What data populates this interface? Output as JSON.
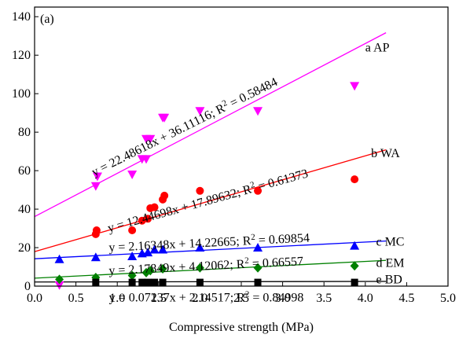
{
  "chart_data": {
    "type": "scatter",
    "panel_label": "(a)",
    "xlabel": "Compressive strength (MPa)",
    "ylabel": "",
    "xlim": [
      0.0,
      5.0
    ],
    "ylim": [
      0,
      145
    ],
    "x_ticks": [
      0.0,
      0.5,
      1.0,
      1.5,
      2.0,
      2.5,
      3.0,
      3.5,
      4.0,
      4.5,
      5.0
    ],
    "x_tick_labels": [
      "0.0",
      "0.5",
      "1.0",
      "1.5",
      "2.0",
      "2.5",
      "3.0",
      "3.5",
      "4.0",
      "4.5",
      "5.0"
    ],
    "y_ticks": [
      0,
      20,
      40,
      60,
      80,
      100,
      120,
      140
    ],
    "y_tick_labels": [
      "0",
      "20",
      "40",
      "60",
      "80",
      "100",
      "120",
      "140"
    ],
    "grid": false,
    "series": [
      {
        "key": "ap",
        "label": "a AP",
        "marker": "triangle-down",
        "color": "#ff00ff",
        "equation": "y = 22.48618x + 36.11116; R",
        "r2_value": " = 0.58484",
        "slope": 22.48618,
        "intercept": 36.11116,
        "fit_range": [
          0.0,
          4.25
        ],
        "label_at": [
          4.0,
          122.0
        ],
        "points": [
          [
            0.3,
            0.5
          ],
          [
            0.74,
            52
          ],
          [
            0.76,
            57
          ],
          [
            1.18,
            58
          ],
          [
            1.3,
            66
          ],
          [
            1.35,
            66
          ],
          [
            1.35,
            76.5
          ],
          [
            1.4,
            76.5
          ],
          [
            1.55,
            87.5
          ],
          [
            1.57,
            87.5
          ],
          [
            2.0,
            91
          ],
          [
            2.7,
            91
          ],
          [
            3.87,
            104
          ]
        ]
      },
      {
        "key": "wa",
        "label": "b WA",
        "marker": "circle",
        "color": "#ff0000",
        "equation": "y = 12.44698x + 17.89632; R",
        "r2_value": " = 0.61373",
        "slope": 12.44698,
        "intercept": 17.89632,
        "fit_range": [
          0.0,
          4.25
        ],
        "label_at": [
          4.07,
          67.0
        ],
        "points": [
          [
            0.74,
            27
          ],
          [
            0.75,
            29
          ],
          [
            1.18,
            29
          ],
          [
            1.3,
            34
          ],
          [
            1.37,
            35
          ],
          [
            1.4,
            40.5
          ],
          [
            1.45,
            41
          ],
          [
            1.55,
            45
          ],
          [
            1.57,
            47
          ],
          [
            2.0,
            49.5
          ],
          [
            2.7,
            49.5
          ],
          [
            3.87,
            55.5
          ]
        ]
      },
      {
        "key": "mc",
        "label": "c MC",
        "marker": "triangle-up",
        "color": "#0000ff",
        "equation": "y = 2.16348x + 14.22665; R",
        "r2_value": " = 0.69854",
        "slope": 2.16348,
        "intercept": 14.22665,
        "fit_range": [
          0.0,
          4.25
        ],
        "label_at": [
          4.13,
          21.0
        ],
        "points": [
          [
            0.3,
            14
          ],
          [
            0.74,
            15
          ],
          [
            1.18,
            15.5
          ],
          [
            1.3,
            17
          ],
          [
            1.37,
            17.5
          ],
          [
            1.45,
            19
          ],
          [
            1.55,
            19
          ],
          [
            2.0,
            20
          ],
          [
            2.7,
            20
          ],
          [
            3.87,
            21
          ]
        ]
      },
      {
        "key": "em",
        "label": "d EM",
        "marker": "diamond",
        "color": "#008000",
        "equation": "y = 2.17849x + 4.12062; R",
        "r2_value": " = 0.66557",
        "slope": 2.17849,
        "intercept": 4.12062,
        "fit_range": [
          0.0,
          4.25
        ],
        "label_at": [
          4.13,
          10.0
        ],
        "points": [
          [
            0.3,
            3.5
          ],
          [
            0.74,
            4.5
          ],
          [
            1.18,
            5.5
          ],
          [
            1.35,
            7
          ],
          [
            1.4,
            8
          ],
          [
            1.55,
            9
          ],
          [
            2.0,
            9.5
          ],
          [
            2.7,
            9.5
          ],
          [
            3.87,
            10.5
          ]
        ]
      },
      {
        "key": "bd",
        "label": "e BD",
        "marker": "square",
        "color": "#000000",
        "equation": "y = 0.07237x + 2.14517; R",
        "r2_value": " = 0.84998",
        "slope": 0.07237,
        "intercept": 2.14517,
        "fit_range": [
          0.0,
          4.25
        ],
        "label_at": [
          4.13,
          1.5
        ],
        "points": [
          [
            0.74,
            2
          ],
          [
            1.18,
            2
          ],
          [
            1.3,
            2
          ],
          [
            1.37,
            2
          ],
          [
            1.45,
            2
          ],
          [
            1.55,
            2
          ],
          [
            2.0,
            2
          ],
          [
            2.7,
            2
          ],
          [
            3.87,
            2
          ]
        ]
      }
    ],
    "equation_placement": [
      {
        "key": "ap",
        "at": [
          0.72,
          57.0
        ],
        "angle_deg": -26.5
      },
      {
        "key": "wa",
        "at": [
          0.9,
          28.0
        ],
        "angle_deg": -15.5
      },
      {
        "key": "mc",
        "at": [
          0.9,
          18.0
        ],
        "angle_deg": -2.8
      },
      {
        "key": "em",
        "at": [
          0.9,
          6.0
        ],
        "angle_deg": -2.8
      },
      {
        "key": "bd",
        "at": [
          0.9,
          -8.0
        ],
        "angle_deg": 0
      }
    ]
  }
}
